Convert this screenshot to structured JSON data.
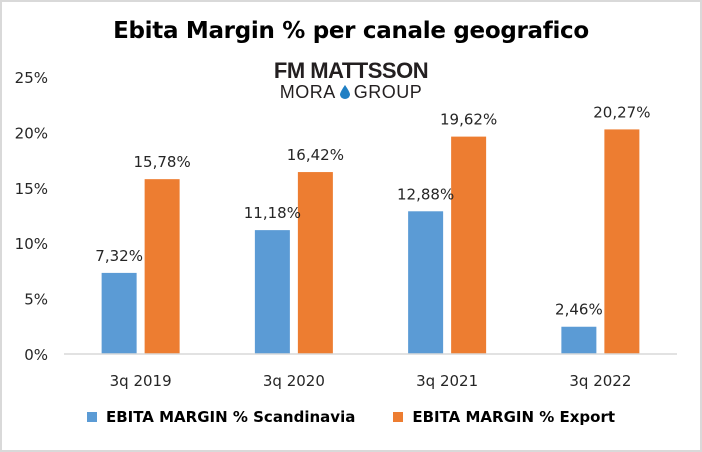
{
  "chart_data": {
    "type": "bar",
    "title": "Ebita Margin % per canale geografico",
    "logo": {
      "line1": "FM MATTSSON",
      "line2_left": "MORA",
      "line2_right": "GROUP",
      "icon": "water-drop-icon"
    },
    "categories": [
      "3q 2019",
      "3q 2020",
      "3q 2021",
      "3q 2022"
    ],
    "series": [
      {
        "name": "EBITA MARGIN % Scandinavia",
        "color": "#5b9bd5",
        "values": [
          7.32,
          11.18,
          12.88,
          2.46
        ],
        "labels": [
          "7,32%",
          "11,18%",
          "12,88%",
          "2,46%"
        ]
      },
      {
        "name": "EBITA MARGIN % Export",
        "color": "#ed7d31",
        "values": [
          15.78,
          16.42,
          19.62,
          20.27
        ],
        "labels": [
          "15,78%",
          "16,42%",
          "19,62%",
          "20,27%"
        ]
      }
    ],
    "xlabel": "",
    "ylabel": "",
    "ylim": [
      0,
      25
    ],
    "yticks": [
      "0%",
      "5%",
      "10%",
      "15%",
      "20%",
      "25%"
    ],
    "ytick_values": [
      0,
      5,
      10,
      15,
      20,
      25
    ],
    "grid": false,
    "legend_position": "bottom"
  }
}
